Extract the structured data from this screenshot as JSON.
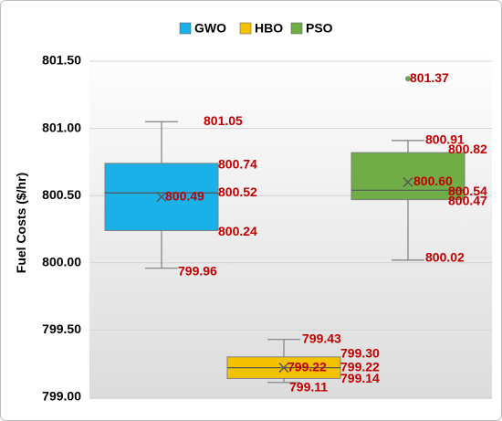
{
  "chart_data": {
    "type": "box",
    "ylabel": "Fuel Costs ($/hr)",
    "ylim": [
      799.0,
      801.5
    ],
    "yticks": [
      "799.00",
      "799.50",
      "800.00",
      "800.50",
      "801.00",
      "801.50"
    ],
    "legend_position": "top-center",
    "grid": true,
    "series": [
      {
        "name": "GWO",
        "color": "#1ab0e8",
        "min": 799.96,
        "q1": 800.24,
        "median": 800.52,
        "mean": 800.49,
        "q3": 800.74,
        "max": 801.05,
        "outliers": [],
        "labels": [
          "801.05",
          "800.74",
          "800.52",
          "800.49",
          "800.24",
          "799.96"
        ]
      },
      {
        "name": "HBO",
        "color": "#f5c200",
        "min": 799.11,
        "q1": 799.14,
        "median": 799.22,
        "mean": 799.22,
        "q3": 799.3,
        "max": 799.43,
        "outliers": [],
        "labels": [
          "799.43",
          "799.30",
          "799.22",
          "799.22",
          "799.14",
          "799.11"
        ]
      },
      {
        "name": "PSO",
        "color": "#70ad47",
        "min": 800.02,
        "q1": 800.47,
        "median": 800.54,
        "mean": 800.6,
        "q3": 800.82,
        "max": 800.91,
        "outliers": [
          801.37
        ],
        "labels": [
          "801.37",
          "800.91",
          "800.82",
          "800.60",
          "800.54",
          "800.47",
          "800.02"
        ]
      }
    ]
  }
}
